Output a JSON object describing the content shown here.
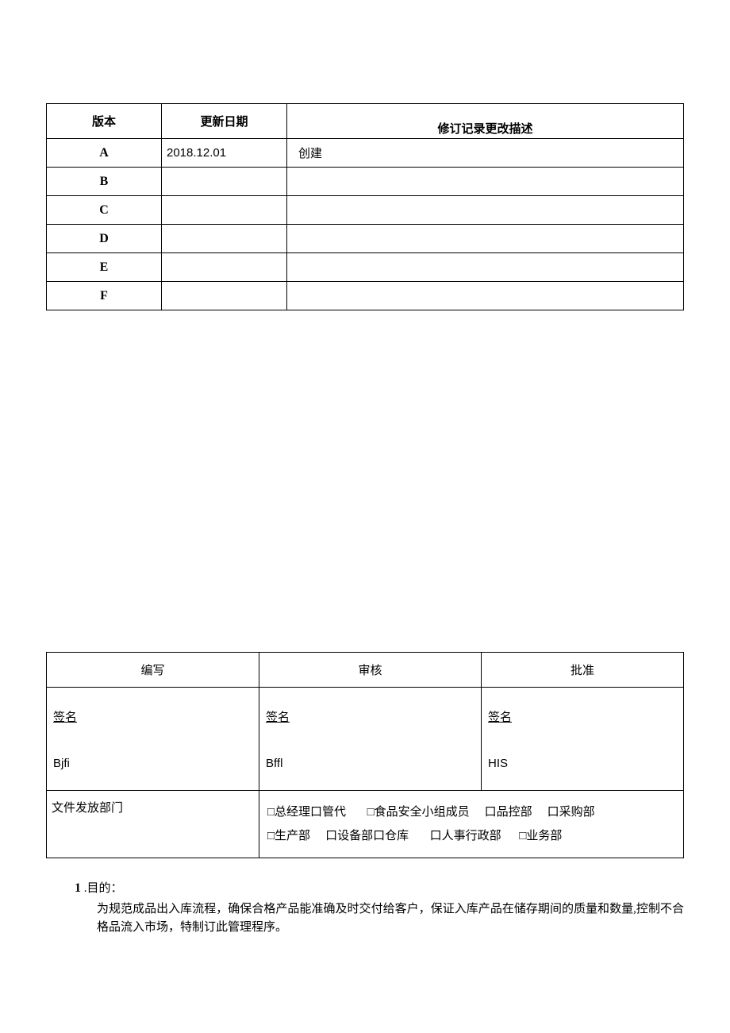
{
  "revision_table": {
    "header": {
      "version": "版本",
      "date": "更新日期",
      "desc": "修订记录更改描述"
    },
    "rows": [
      {
        "ver": "A",
        "date": "2018.12.01",
        "desc": "创建"
      },
      {
        "ver": "B",
        "date": "",
        "desc": ""
      },
      {
        "ver": "C",
        "date": "",
        "desc": ""
      },
      {
        "ver": "D",
        "date": "",
        "desc": ""
      },
      {
        "ver": "E",
        "date": "",
        "desc": ""
      },
      {
        "ver": "F",
        "date": "",
        "desc": ""
      }
    ]
  },
  "signature_table": {
    "header": {
      "write": "编写",
      "review": "审核",
      "approve": "批准"
    },
    "sig_label": "签名",
    "codes": {
      "write": "Bjfi",
      "review": "Bffl",
      "approve": "HIS"
    }
  },
  "distribution": {
    "label": "文件发放部门",
    "items_line1": [
      "□总经理口管代",
      "□食品安全小组成员",
      "口品控部",
      "口采购部"
    ],
    "items_line2": [
      "□生产部",
      "口设备部口仓库",
      "口人事行政部",
      "□业务部"
    ]
  },
  "body": {
    "section_num": "1",
    "section_title": " .目的：",
    "paragraph": "为规范成品出入库流程，确保合格产品能准确及时交付给客户，保证入库产品在储存期间的质量和数量,控制不合格品流入市场，特制订此管理程序。"
  }
}
